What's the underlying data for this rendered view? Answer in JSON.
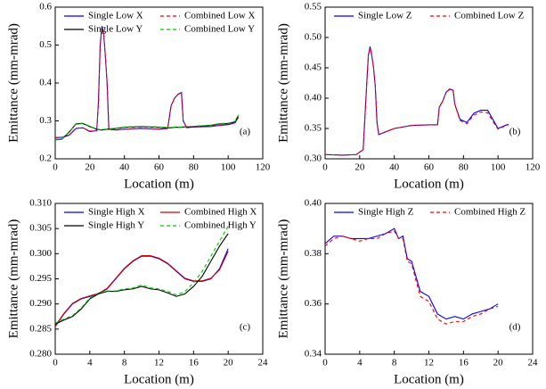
{
  "chart_data": [
    {
      "type": "line",
      "annotation": "(a)",
      "xlabel": "Location (m)",
      "ylabel": "Emittance (mm-mrad)",
      "xlim": [
        0,
        120
      ],
      "xticks": [
        0,
        20,
        40,
        60,
        80,
        100,
        120
      ],
      "ylim": [
        0.2,
        0.6
      ],
      "yticks": [
        0.2,
        0.3,
        0.4,
        0.5,
        0.6
      ],
      "x": [
        0,
        4,
        8,
        12,
        16,
        20,
        24,
        25,
        26,
        27,
        28,
        29,
        30,
        31,
        35,
        40,
        50,
        60,
        65,
        67,
        69,
        71,
        73,
        74,
        76,
        80,
        90,
        95,
        100,
        104,
        106
      ],
      "series": [
        {
          "name": "Single Low X",
          "color": "#0000ff",
          "dashed": false,
          "values": [
            0.255,
            0.257,
            0.262,
            0.28,
            0.282,
            0.272,
            0.274,
            0.35,
            0.5,
            0.55,
            0.53,
            0.47,
            0.4,
            0.278,
            0.276,
            0.278,
            0.28,
            0.278,
            0.28,
            0.34,
            0.36,
            0.37,
            0.375,
            0.3,
            0.282,
            0.284,
            0.285,
            0.288,
            0.29,
            0.295,
            0.31
          ]
        },
        {
          "name": "Combined Low X",
          "color": "#ff0000",
          "dashed": true,
          "values": [
            0.256,
            0.257,
            0.263,
            0.281,
            0.282,
            0.273,
            0.275,
            0.35,
            0.5,
            0.548,
            0.53,
            0.47,
            0.4,
            0.279,
            0.276,
            0.278,
            0.281,
            0.278,
            0.28,
            0.34,
            0.36,
            0.37,
            0.374,
            0.3,
            0.283,
            0.284,
            0.286,
            0.288,
            0.291,
            0.296,
            0.311
          ]
        },
        {
          "name": "Single Low Y",
          "color": "#000000",
          "dashed": false,
          "values": [
            0.25,
            0.252,
            0.27,
            0.292,
            0.293,
            0.285,
            0.278,
            0.277,
            0.276,
            0.276,
            0.277,
            0.277,
            0.278,
            0.278,
            0.28,
            0.283,
            0.285,
            0.283,
            0.282,
            0.282,
            0.283,
            0.283,
            0.283,
            0.284,
            0.284,
            0.285,
            0.288,
            0.292,
            0.293,
            0.298,
            0.315
          ]
        },
        {
          "name": "Combined Low Y",
          "color": "#00cc00",
          "dashed": true,
          "values": [
            0.251,
            0.253,
            0.271,
            0.293,
            0.294,
            0.286,
            0.279,
            0.278,
            0.277,
            0.277,
            0.278,
            0.278,
            0.279,
            0.279,
            0.281,
            0.284,
            0.286,
            0.284,
            0.283,
            0.283,
            0.284,
            0.284,
            0.284,
            0.285,
            0.285,
            0.286,
            0.289,
            0.293,
            0.294,
            0.299,
            0.316
          ]
        }
      ]
    },
    {
      "type": "line",
      "annotation": "(b)",
      "xlabel": "Location (m)",
      "ylabel": "Emittance (mm-mrad)",
      "xlim": [
        0,
        120
      ],
      "xticks": [
        0,
        20,
        40,
        60,
        80,
        100,
        120
      ],
      "ylim": [
        0.3,
        0.55
      ],
      "yticks": [
        {
          "value": 0.3,
          "label": "0.30"
        },
        0.35,
        {
          "value": 0.4,
          "label": "0.40"
        },
        0.45,
        {
          "value": 0.5,
          "label": "0.50"
        },
        0.55
      ],
      "x": [
        0,
        10,
        18,
        22,
        24,
        25,
        26,
        27,
        28,
        29,
        30,
        31,
        40,
        50,
        60,
        65,
        66,
        68,
        70,
        72,
        74,
        75,
        78,
        82,
        86,
        90,
        94,
        98,
        100,
        104,
        106
      ],
      "series": [
        {
          "name": "Single Low Z",
          "color": "#0000ff",
          "dashed": false,
          "values": [
            0.307,
            0.306,
            0.307,
            0.315,
            0.42,
            0.47,
            0.485,
            0.47,
            0.45,
            0.42,
            0.36,
            0.34,
            0.35,
            0.355,
            0.356,
            0.356,
            0.385,
            0.395,
            0.41,
            0.415,
            0.413,
            0.39,
            0.365,
            0.36,
            0.375,
            0.38,
            0.38,
            0.36,
            0.35,
            0.355,
            0.357
          ]
        },
        {
          "name": "Combined Low Z",
          "color": "#ff0000",
          "dashed": true,
          "values": [
            0.307,
            0.306,
            0.307,
            0.315,
            0.42,
            0.47,
            0.483,
            0.47,
            0.45,
            0.42,
            0.36,
            0.34,
            0.35,
            0.355,
            0.356,
            0.356,
            0.385,
            0.395,
            0.41,
            0.414,
            0.412,
            0.39,
            0.363,
            0.358,
            0.372,
            0.377,
            0.376,
            0.357,
            0.349,
            0.354,
            0.356
          ]
        }
      ]
    },
    {
      "type": "line",
      "annotation": "(c)",
      "xlabel": "Location (m)",
      "ylabel": "Emittance (mm-mrad)",
      "xlim": [
        0,
        24
      ],
      "xticks": [
        0,
        4,
        8,
        12,
        16,
        20,
        24
      ],
      "ylim": [
        0.28,
        0.31
      ],
      "yticks": [
        {
          "value": 0.28,
          "label": "0.280"
        },
        0.285,
        {
          "value": 0.29,
          "label": "0.290"
        },
        0.295,
        {
          "value": 0.3,
          "label": "0.300"
        },
        0.305,
        {
          "value": 0.31,
          "label": "0.310"
        }
      ],
      "x": [
        0,
        1,
        2,
        3,
        4,
        5,
        6,
        7,
        8,
        9,
        10,
        11,
        12,
        13,
        14,
        15,
        16,
        17,
        18,
        19,
        20
      ],
      "series": [
        {
          "name": "Single High X",
          "color": "#0000ff",
          "dashed": false,
          "values": [
            0.2855,
            0.288,
            0.29,
            0.291,
            0.2915,
            0.292,
            0.293,
            0.295,
            0.297,
            0.2985,
            0.2995,
            0.2995,
            0.299,
            0.298,
            0.2965,
            0.295,
            0.2945,
            0.2945,
            0.295,
            0.297,
            0.301
          ]
        },
        {
          "name": "Combined High X",
          "color": "#cc0000",
          "dashed": false,
          "values": [
            0.2856,
            0.2881,
            0.2901,
            0.2911,
            0.2916,
            0.2921,
            0.2931,
            0.2951,
            0.2971,
            0.2986,
            0.2996,
            0.2996,
            0.2991,
            0.2981,
            0.2966,
            0.2951,
            0.2946,
            0.2946,
            0.2951,
            0.2968,
            0.3005
          ]
        },
        {
          "name": "Single High Y",
          "color": "#000000",
          "dashed": false,
          "values": [
            0.286,
            0.2868,
            0.2875,
            0.289,
            0.291,
            0.292,
            0.2925,
            0.2925,
            0.2928,
            0.293,
            0.2935,
            0.293,
            0.2928,
            0.2922,
            0.2915,
            0.292,
            0.2935,
            0.2955,
            0.2985,
            0.3015,
            0.304
          ]
        },
        {
          "name": "Combined High Y",
          "color": "#00cc00",
          "dashed": true,
          "values": [
            0.2862,
            0.287,
            0.2877,
            0.2892,
            0.2912,
            0.2922,
            0.2926,
            0.2926,
            0.293,
            0.2932,
            0.2938,
            0.2932,
            0.293,
            0.2925,
            0.2918,
            0.2925,
            0.2942,
            0.2965,
            0.2995,
            0.3025,
            0.3055
          ]
        }
      ]
    },
    {
      "type": "line",
      "annotation": "(d)",
      "xlabel": "Location (m)",
      "ylabel": "Emittance (mm-mrad)",
      "xlim": [
        0,
        24
      ],
      "xticks": [
        0,
        4,
        8,
        12,
        16,
        20,
        24
      ],
      "ylim": [
        0.34,
        0.4
      ],
      "yticks": [
        0.34,
        0.36,
        0.38,
        {
          "value": 0.4,
          "label": "0.40"
        }
      ],
      "x": [
        0,
        1,
        2,
        3,
        4,
        5,
        6,
        7,
        8,
        8.5,
        9,
        9.5,
        10,
        11,
        12,
        13,
        14,
        15,
        16,
        17,
        18,
        19,
        20
      ],
      "series": [
        {
          "name": "Single High Z",
          "color": "#0000ff",
          "dashed": false,
          "values": [
            0.384,
            0.387,
            0.387,
            0.386,
            0.386,
            0.386,
            0.387,
            0.388,
            0.39,
            0.386,
            0.387,
            0.378,
            0.377,
            0.365,
            0.363,
            0.356,
            0.354,
            0.355,
            0.354,
            0.356,
            0.357,
            0.358,
            0.36
          ]
        },
        {
          "name": "Combined High Z",
          "color": "#ff0000",
          "dashed": true,
          "values": [
            0.383,
            0.386,
            0.387,
            0.386,
            0.385,
            0.386,
            0.386,
            0.388,
            0.389,
            0.386,
            0.386,
            0.377,
            0.376,
            0.363,
            0.361,
            0.354,
            0.352,
            0.353,
            0.353,
            0.355,
            0.356,
            0.358,
            0.359
          ]
        }
      ]
    }
  ]
}
